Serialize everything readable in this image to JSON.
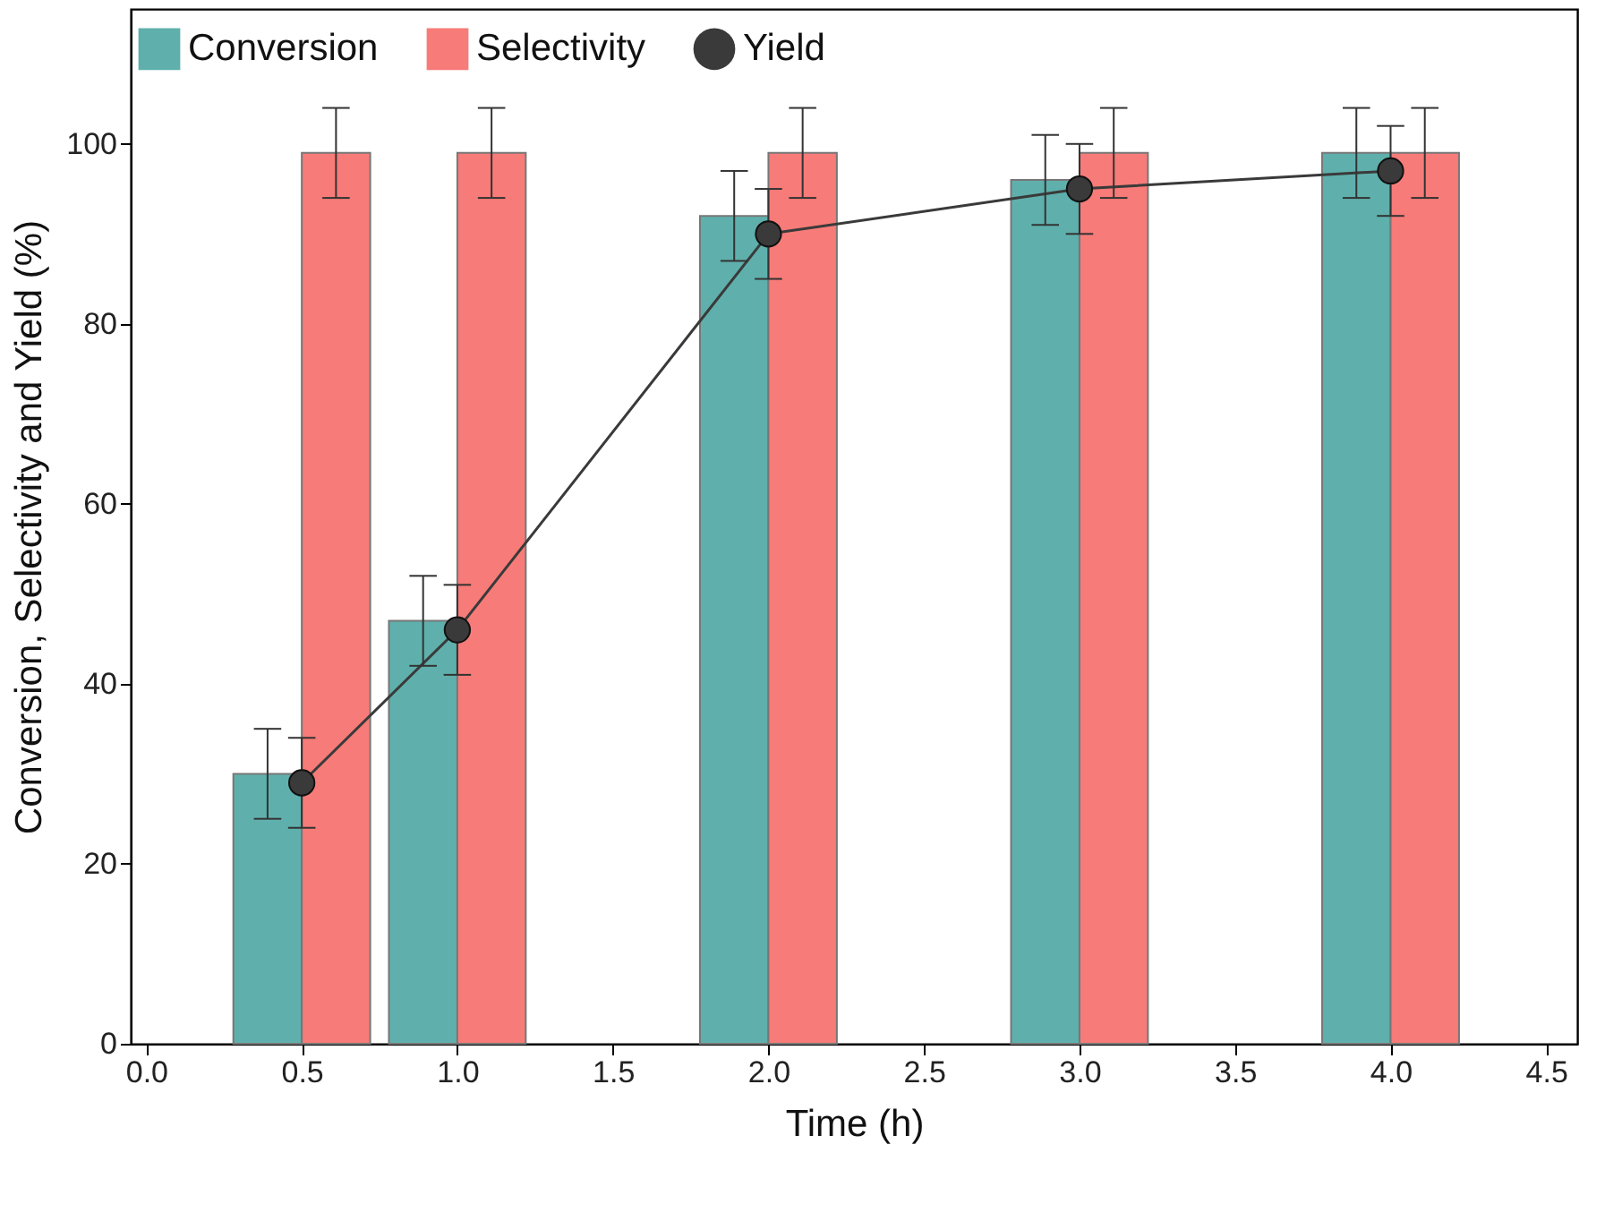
{
  "chart_data": {
    "type": "bar",
    "xlabel": "Time (h)",
    "ylabel": "Conversion, Selectivity and Yield (%)",
    "x": [
      0.5,
      1,
      2,
      3,
      4
    ],
    "series": [
      {
        "name": "Conversion",
        "color": "#5fb0ac",
        "values": [
          30,
          47,
          92,
          96,
          99
        ],
        "errors": [
          5,
          5,
          5,
          5,
          5
        ]
      },
      {
        "name": "Selectivity",
        "color": "#f77b78",
        "values": [
          99,
          99,
          99,
          99,
          99
        ],
        "errors": [
          5,
          5,
          5,
          5,
          5
        ]
      },
      {
        "name": "Yield",
        "type": "line",
        "color": "#3a3a3a",
        "marker": "circle",
        "line_style": "solid",
        "values": [
          29,
          46,
          90,
          95,
          97
        ],
        "errors": [
          5,
          5,
          5,
          5,
          5
        ]
      }
    ],
    "xlim": [
      -0.05,
      4.6
    ],
    "ylim": [
      0,
      115
    ],
    "xticks": [
      {
        "value": 0,
        "label": "0.0"
      },
      {
        "value": 0.5,
        "label": "0.5"
      },
      {
        "value": 1,
        "label": "1.0"
      },
      {
        "value": 1.5,
        "label": "1.5"
      },
      {
        "value": 2,
        "label": "2.0"
      },
      {
        "value": 2.5,
        "label": "2.5"
      },
      {
        "value": 3,
        "label": "3.0"
      },
      {
        "value": 3.5,
        "label": "3.5"
      },
      {
        "value": 4,
        "label": "4.0"
      },
      {
        "value": 4.5,
        "label": "4.5"
      }
    ],
    "yticks": [
      0,
      20,
      40,
      60,
      80,
      100
    ],
    "grid": false,
    "legend": "top"
  }
}
